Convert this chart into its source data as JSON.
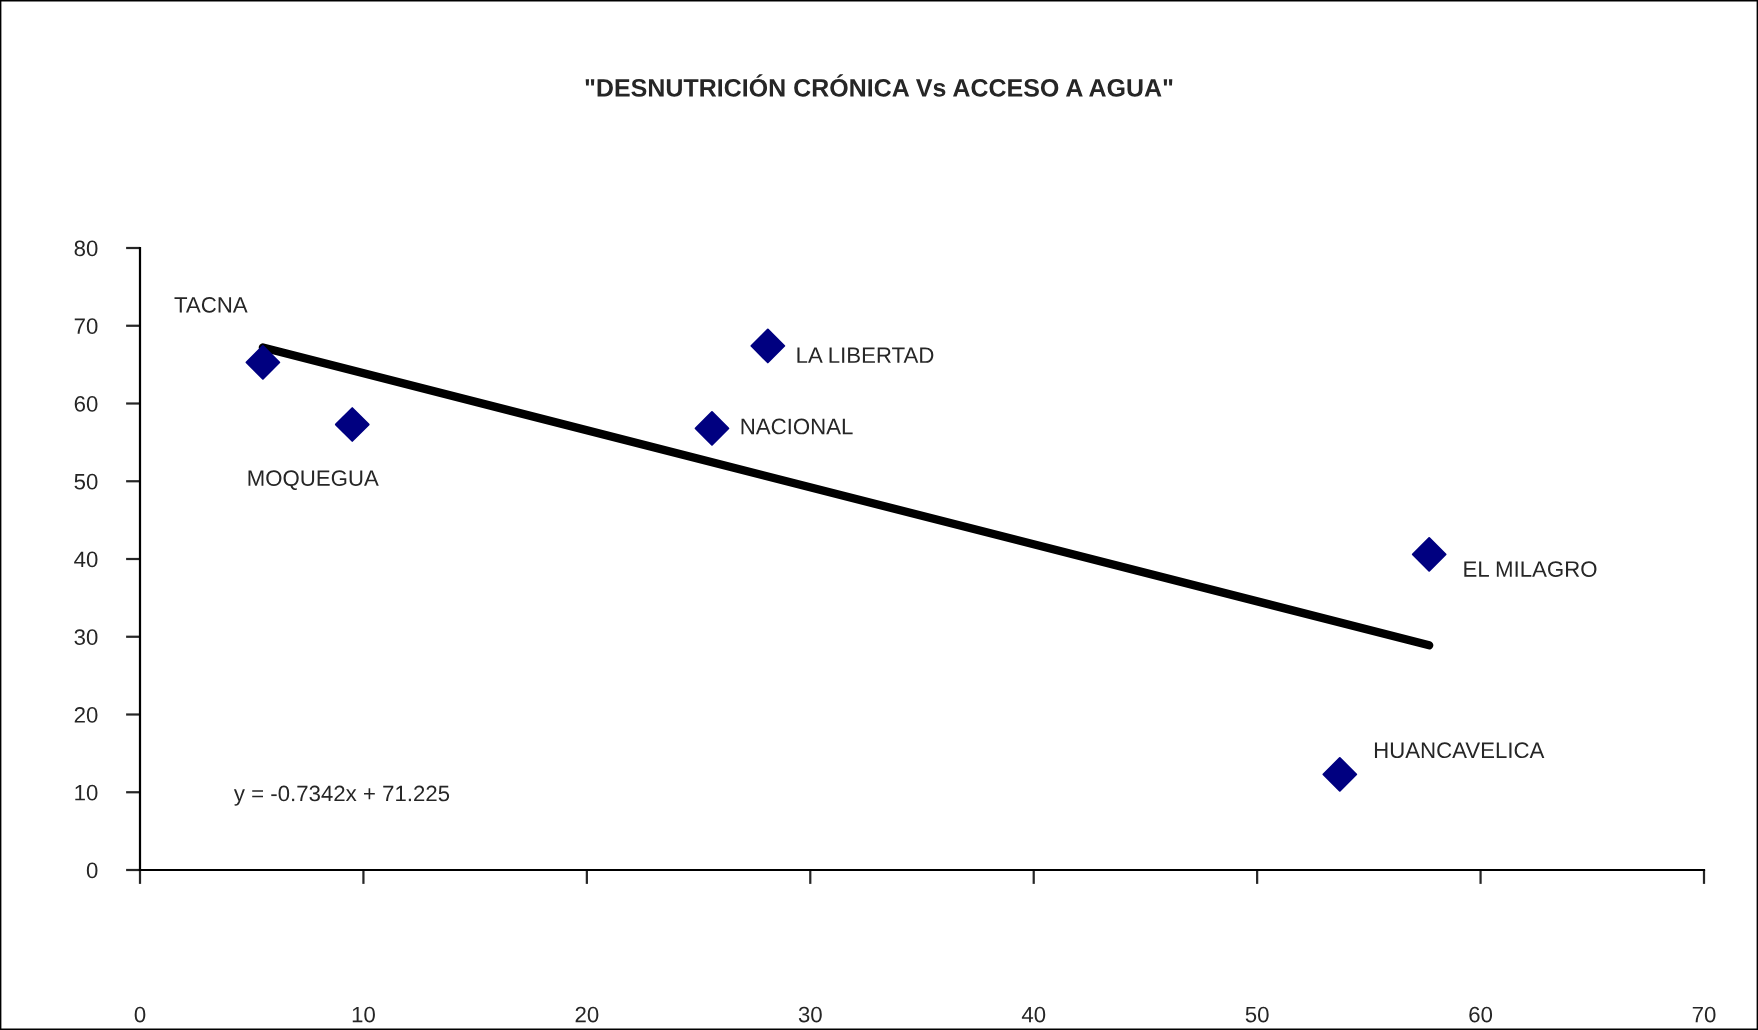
{
  "chart_data": {
    "type": "scatter",
    "title": "\"DESNUTRICIÓN CRÓNICA Vs ACCESO A AGUA\"",
    "series": [
      {
        "color": "#000080",
        "marker": "diamond",
        "x": [
          5.5,
          9.5,
          25.6,
          28.1,
          57.7,
          53.7
        ],
        "values": [
          65.3,
          57.3,
          56.8,
          67.4,
          40.6,
          12.3
        ]
      },
      {
        "type": "line",
        "color": "#000000",
        "x": [
          5.5,
          57.7
        ],
        "values": [
          67.2,
          28.9
        ]
      }
    ],
    "annotations": [
      {
        "text": "TACNA",
        "x": 5.5,
        "y": 65.3
      },
      {
        "text": "MOQUEGUA",
        "x": 9.5,
        "y": 57.3
      },
      {
        "text": "NACIONAL",
        "x": 25.6,
        "y": 56.8
      },
      {
        "text": "LA LIBERTAD",
        "x": 28.1,
        "y": 67.4
      },
      {
        "text": "EL MILAGRO",
        "x": 57.7,
        "y": 40.6
      },
      {
        "text": "HUANCAVELICA",
        "x": 53.7,
        "y": 12.3
      },
      "y = -0.7342x + 71.225"
    ],
    "xlim": [
      0,
      70
    ],
    "xticks": [
      0,
      10,
      20,
      30,
      40,
      50,
      60,
      70
    ],
    "ylim": [
      0,
      80
    ],
    "yticks": [
      0,
      10,
      20,
      30,
      40,
      50,
      60,
      70,
      80
    ],
    "grid": false
  }
}
